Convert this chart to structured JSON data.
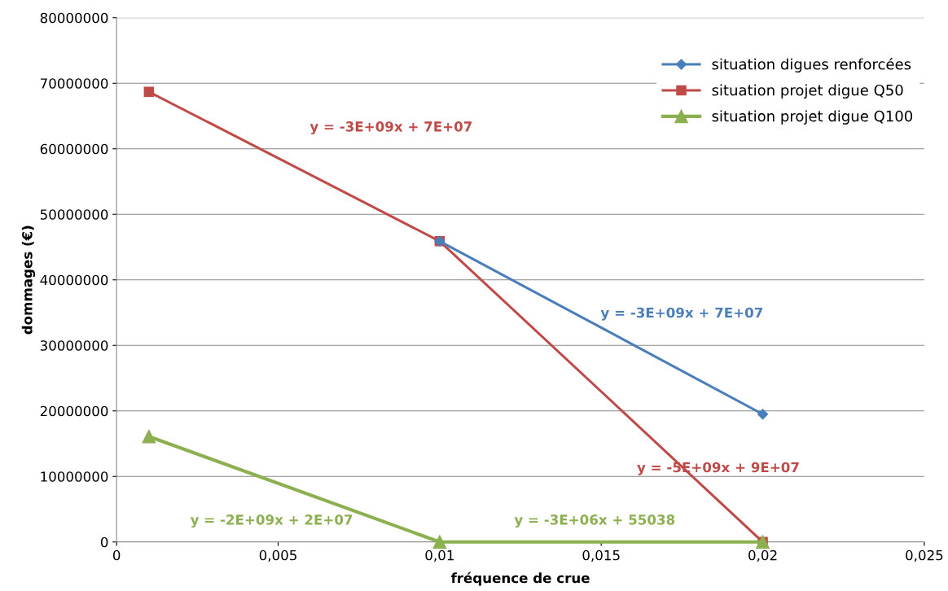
{
  "chart_data": {
    "type": "line",
    "xlabel": "fréquence de crue",
    "ylabel": "dommages (€)",
    "series": [
      {
        "name": "situation digues renforcées",
        "color": "#4a7ebb",
        "marker": "diamond",
        "x": [
          0.01,
          0.02
        ],
        "values": [
          45900000,
          19500000
        ]
      },
      {
        "name": "situation projet digue Q50",
        "color": "#be4b48",
        "marker": "square",
        "x": [
          0.001,
          0.01,
          0.02
        ],
        "values": [
          68700000,
          45900000,
          0
        ]
      },
      {
        "name": "situation projet digue Q100",
        "color": "#8cb050",
        "marker": "triangle",
        "x": [
          0.001,
          0.01,
          0.02
        ],
        "values": [
          16100000,
          0,
          0
        ]
      }
    ],
    "annotations": [
      "y = -3E+09x + 7E+07",
      "y = -3E+09x + 7E+07",
      "y = -5E+09x + 9E+07",
      "y = -2E+09x + 2E+07",
      "y = -3E+06x + 55038"
    ],
    "xlim": [
      0,
      0.025
    ],
    "xticks": [
      0,
      {
        "value": 0.005,
        "label": "0,005"
      },
      {
        "value": 0.01,
        "label": "0,01"
      },
      {
        "value": 0.015,
        "label": "0,015"
      },
      {
        "value": 0.02,
        "label": "0,02"
      },
      {
        "value": 0.025,
        "label": "0,025"
      }
    ],
    "ylim": [
      0,
      80000000
    ],
    "yticks": [
      0,
      10000000,
      20000000,
      30000000,
      40000000,
      50000000,
      60000000,
      70000000,
      80000000
    ],
    "grid": "y",
    "legend": "right"
  }
}
